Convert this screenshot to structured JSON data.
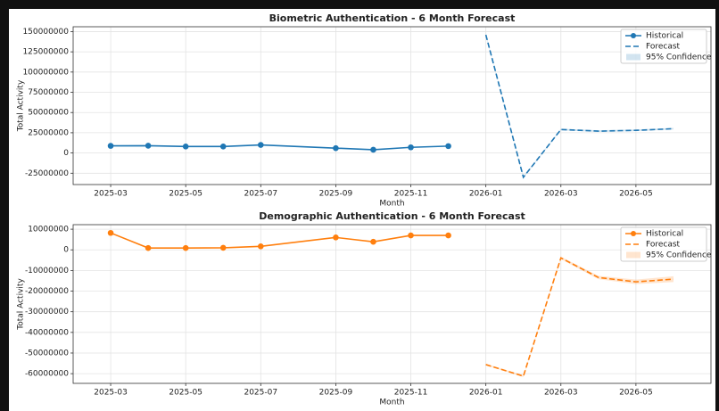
{
  "chart_data": [
    {
      "type": "line",
      "title": "Biometric Authentication - 6 Month Forecast",
      "xlabel": "Month",
      "ylabel": "Total Activity",
      "xlim": [
        "2025-02",
        "2026-07"
      ],
      "xticks": [
        "2025-03",
        "2025-05",
        "2025-07",
        "2025-09",
        "2025-11",
        "2026-01",
        "2026-03",
        "2026-05"
      ],
      "ylim": [
        -39000000,
        156000000
      ],
      "yticks": [
        -25000000,
        0,
        25000000,
        50000000,
        75000000,
        100000000,
        125000000,
        150000000
      ],
      "grid": true,
      "legend": "upper right",
      "series": [
        {
          "name": "Historical",
          "color": "#1f77b4",
          "style": "solid",
          "marker": true,
          "x": [
            "2025-03",
            "2025-04",
            "2025-05",
            "2025-06",
            "2025-07",
            "2025-09",
            "2025-10",
            "2025-11",
            "2025-12"
          ],
          "values": [
            8800000,
            9000000,
            8000000,
            8000000,
            10000000,
            6000000,
            4000000,
            7000000,
            8500000
          ]
        },
        {
          "name": "Forecast",
          "color": "#1f77b4",
          "style": "dashed",
          "marker": false,
          "x": [
            "2026-01",
            "2026-02",
            "2026-03",
            "2026-04",
            "2026-05",
            "2026-06"
          ],
          "values": [
            146000000,
            -30000000,
            29000000,
            27000000,
            28000000,
            30000000
          ]
        }
      ],
      "confidence": {
        "name": "95% Confidence",
        "color": "#1f77b4",
        "x": [
          "2026-01",
          "2026-02",
          "2026-03",
          "2026-04",
          "2026-05",
          "2026-06"
        ],
        "lower": [
          145000000,
          -31000000,
          28000000,
          26000000,
          27000000,
          29000000
        ],
        "upper": [
          147000000,
          -29000000,
          30000000,
          28000000,
          29000000,
          31000000
        ]
      }
    },
    {
      "type": "line",
      "title": "Demographic Authentication - 6 Month Forecast",
      "xlabel": "Month",
      "ylabel": "Total Activity",
      "xlim": [
        "2025-02",
        "2026-07"
      ],
      "xticks": [
        "2025-03",
        "2025-05",
        "2025-07",
        "2025-09",
        "2025-11",
        "2026-01",
        "2026-03",
        "2026-05"
      ],
      "ylim": [
        -64700000,
        12200000
      ],
      "yticks": [
        -60000000,
        -50000000,
        -40000000,
        -30000000,
        -20000000,
        -10000000,
        0,
        10000000
      ],
      "grid": true,
      "legend": "upper right",
      "series": [
        {
          "name": "Historical",
          "color": "#ff7f0e",
          "style": "solid",
          "marker": true,
          "x": [
            "2025-03",
            "2025-04",
            "2025-05",
            "2025-06",
            "2025-07",
            "2025-09",
            "2025-10",
            "2025-11",
            "2025-12"
          ],
          "values": [
            8200000,
            900000,
            900000,
            1000000,
            1700000,
            6000000,
            3900000,
            7000000,
            7000000
          ]
        },
        {
          "name": "Forecast",
          "color": "#ff7f0e",
          "style": "dashed",
          "marker": false,
          "x": [
            "2026-01",
            "2026-02",
            "2026-03",
            "2026-04",
            "2026-05",
            "2026-06"
          ],
          "values": [
            -55600000,
            -61200000,
            -3900000,
            -13400000,
            -15500000,
            -14200000
          ]
        }
      ],
      "confidence": {
        "name": "95% Confidence",
        "color": "#ff7f0e",
        "x": [
          "2026-01",
          "2026-02",
          "2026-03",
          "2026-04",
          "2026-05",
          "2026-06"
        ],
        "lower": [
          -56000000,
          -61600000,
          -4500000,
          -14200000,
          -16600000,
          -15600000
        ],
        "upper": [
          -55200000,
          -60800000,
          -3300000,
          -12600000,
          -14400000,
          -12800000
        ]
      }
    }
  ]
}
